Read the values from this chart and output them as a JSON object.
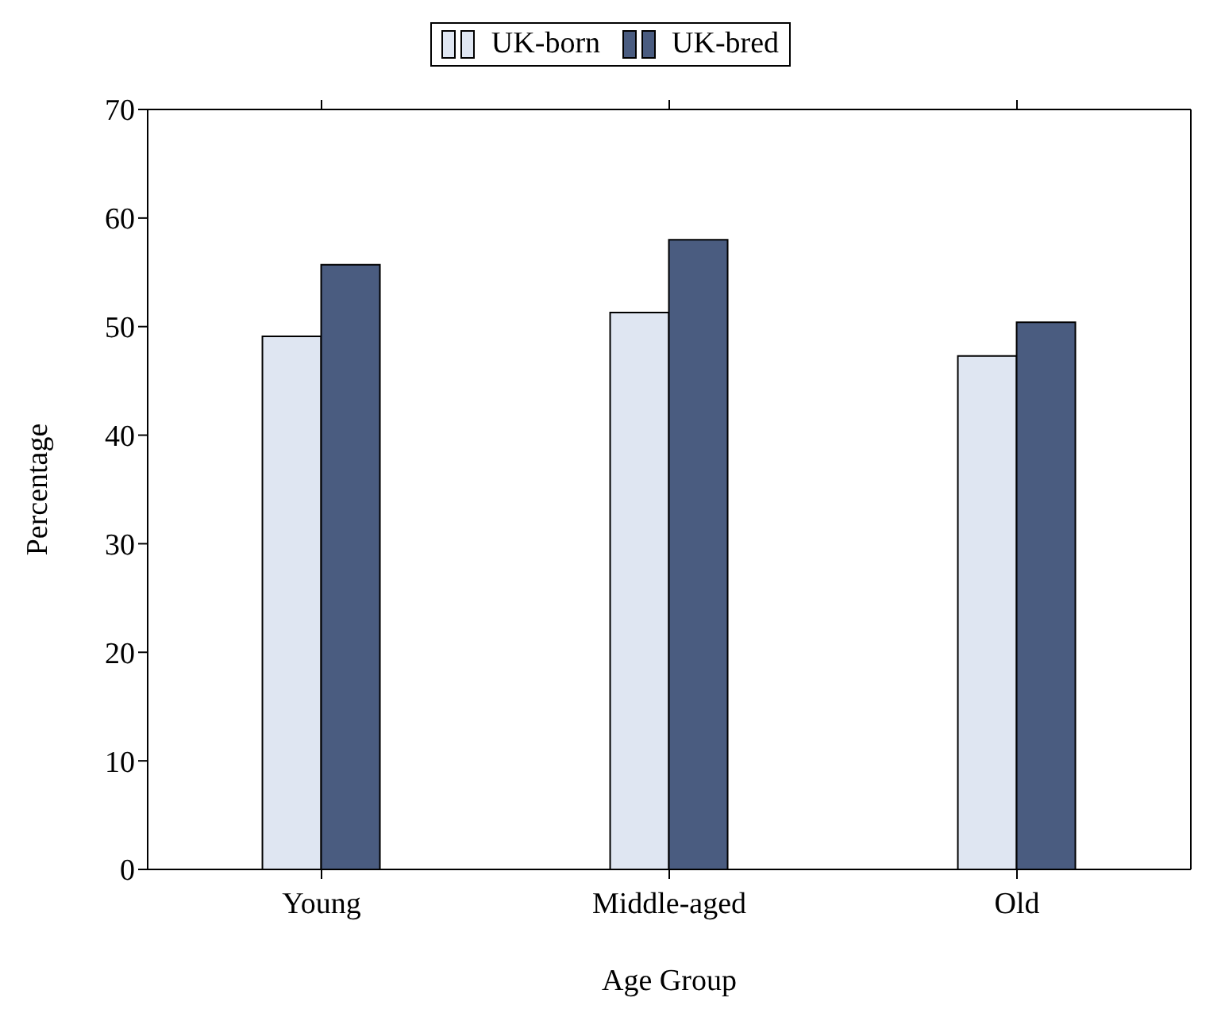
{
  "chart_data": {
    "type": "bar",
    "xlabel": "Age Group",
    "ylabel": "Percentage",
    "categories": [
      "Young",
      "Middle-aged",
      "Old"
    ],
    "series": [
      {
        "name": "UK-born",
        "color": "#dfe6f2",
        "values": [
          49.1,
          51.3,
          47.3
        ]
      },
      {
        "name": "UK-bred",
        "color": "#4a5c80",
        "values": [
          55.7,
          58.0,
          50.4
        ]
      }
    ],
    "ylim": [
      0,
      70
    ],
    "yticks": [
      0,
      10,
      20,
      30,
      40,
      50,
      60,
      70
    ],
    "grid": false,
    "legend": "top"
  }
}
